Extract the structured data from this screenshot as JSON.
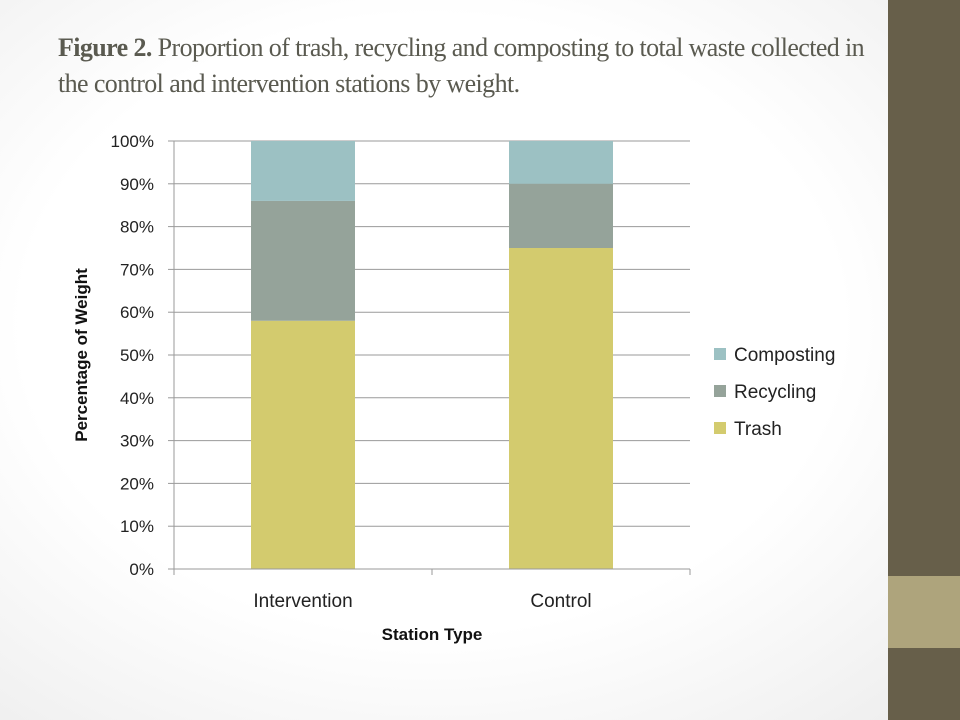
{
  "slide": {
    "title_lead": "Figure 2.",
    "title_rest": " Proportion of trash, recycling and composting to total waste collected in the control and intervention stations by weight."
  },
  "colors": {
    "sidebar_dark": "#675f4a",
    "sidebar_light": "#aea47c",
    "gridline": "#9a9a9a"
  },
  "chart_data": {
    "type": "bar",
    "stacked": true,
    "categories": [
      "Intervention",
      "Control"
    ],
    "series": [
      {
        "name": "Trash",
        "values": [
          58,
          75
        ],
        "color": "#d3cb6e"
      },
      {
        "name": "Recycling",
        "values": [
          28,
          15
        ],
        "color": "#95a39a"
      },
      {
        "name": "Composting",
        "values": [
          14,
          10
        ],
        "color": "#9cc1c3"
      }
    ],
    "xlabel": "Station Type",
    "ylabel": "Percentage of Weight",
    "ylim": [
      0,
      100
    ],
    "yticks": [
      "0%",
      "10%",
      "20%",
      "30%",
      "40%",
      "50%",
      "60%",
      "70%",
      "80%",
      "90%",
      "100%"
    ],
    "grid": true,
    "legend": [
      "Composting",
      "Recycling",
      "Trash"
    ],
    "legend_position": "right"
  }
}
